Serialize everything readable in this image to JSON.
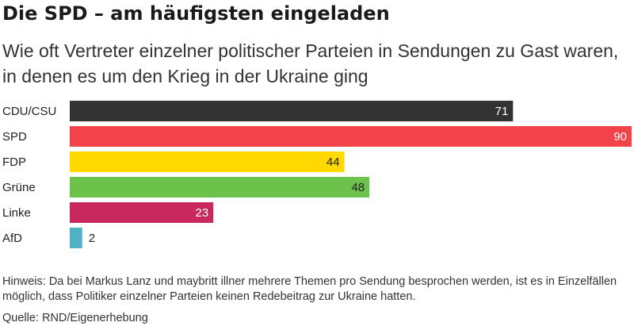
{
  "header": {
    "title": "Die SPD – am häufigsten eingeladen",
    "subtitle": "Wie oft Vertreter einzelner politischer Parteien in Sendungen zu Gast waren, in denen es um den Krieg in der Ukraine ging"
  },
  "footer": {
    "note": "Hinweis: Da bei Markus Lanz und maybritt illner mehrere Themen pro Sendung besprochen werden, ist es in Einzelfällen möglich, dass Politiker einzelner Parteien keinen Redebeitrag zur Ukraine hatten.",
    "source": "Quelle: RND/Eigenerhebung"
  },
  "chart_data": {
    "type": "bar",
    "orientation": "horizontal",
    "title": "Die SPD – am häufigsten eingeladen",
    "xlim": [
      0,
      90
    ],
    "grid": false,
    "categories": [
      "CDU/CSU",
      "SPD",
      "FDP",
      "Grüne",
      "Linke",
      "AfD"
    ],
    "values": [
      71,
      90,
      44,
      48,
      23,
      2
    ],
    "colors": [
      "#333333",
      "#f2434b",
      "#ffd900",
      "#6cc24a",
      "#c9285f",
      "#4fb0c6"
    ],
    "label_colors": [
      "#ffffff",
      "#ffffff",
      "#222222",
      "#222222",
      "#ffffff",
      "#222222"
    ]
  }
}
